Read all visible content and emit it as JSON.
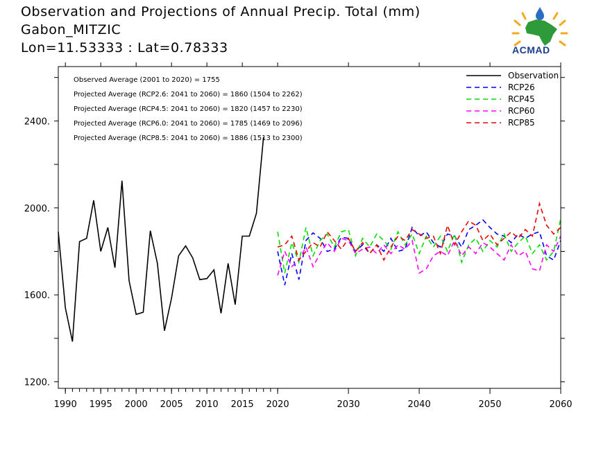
{
  "header": {
    "line1": "Observation and Projections of Annual Precip. Total (mm)",
    "line2": "Gabon_MITZIC",
    "line3": "Lon=11.53333 : Lat=0.78333"
  },
  "logo": {
    "text": "ACMAD",
    "icon": "africa-sun-drop-icon"
  },
  "chart_data": {
    "type": "line",
    "xlim": [
      1989,
      2060
    ],
    "ylim": [
      1170,
      2650
    ],
    "x_ticks": [
      1990,
      1995,
      2000,
      2005,
      2010,
      2015,
      2020,
      2030,
      2040,
      2050,
      2060
    ],
    "y_ticks": [
      1200,
      1600,
      2000,
      2400
    ],
    "y_tick_labels": [
      "1200.",
      "1600.",
      "2000.",
      "2400."
    ],
    "annotations": [
      "Observed Average (2001 to 2020) = 1755",
      "Projected Average (RCP2.6: 2041 to 2060) = 1860 (1504 to 2262)",
      "Projected Average (RCP4.5: 2041 to 2060) = 1820 (1457 to 2230)",
      "Projected Average (RCP6.0: 2041 to 2060) = 1785 (1469 to 2096)",
      "Projected Average (RCP8.5: 2041 to 2060) = 1886 (1513 to 2300)"
    ],
    "legend_position": "top-right",
    "series": [
      {
        "name": "Observation",
        "color": "#000000",
        "dash": false,
        "x": [
          1989,
          1990,
          1991,
          1992,
          1993,
          1994,
          1995,
          1996,
          1997,
          1998,
          1999,
          2000,
          2001,
          2002,
          2003,
          2004,
          2005,
          2006,
          2007,
          2008,
          2009,
          2010,
          2011,
          2012,
          2013,
          2014,
          2015,
          2016,
          2017,
          2018,
          2019,
          2020
        ],
        "y": [
          1890,
          1540,
          1385,
          1845,
          1860,
          2035,
          1800,
          1910,
          1725,
          2125,
          1665,
          1510,
          1520,
          1895,
          1745,
          1435,
          1585,
          1780,
          1825,
          1770,
          1670,
          1675,
          1715,
          1515,
          1745,
          1555,
          1870,
          1870,
          1975,
          2325,
          null,
          null
        ]
      },
      {
        "name": "RCP26",
        "color": "#0000ff",
        "dash": true,
        "x": [
          2020,
          2021,
          2022,
          2023,
          2024,
          2025,
          2026,
          2027,
          2028,
          2029,
          2030,
          2031,
          2032,
          2033,
          2034,
          2035,
          2036,
          2037,
          2038,
          2039,
          2040,
          2041,
          2042,
          2043,
          2044,
          2045,
          2046,
          2047,
          2048,
          2049,
          2050,
          2051,
          2052,
          2053,
          2054,
          2055,
          2056,
          2057,
          2058,
          2059,
          2060
        ],
        "y": [
          1800,
          1645,
          1790,
          1670,
          1850,
          1885,
          1860,
          1800,
          1810,
          1865,
          1860,
          1800,
          1830,
          1790,
          1830,
          1800,
          1860,
          1800,
          1810,
          1910,
          1870,
          1890,
          1840,
          1820,
          1880,
          1870,
          1820,
          1900,
          1920,
          1945,
          1910,
          1880,
          1870,
          1840,
          1880,
          1860,
          1880,
          1890,
          1780,
          1760,
          1850
        ]
      },
      {
        "name": "RCP45",
        "color": "#00dd00",
        "dash": true,
        "x": [
          2020,
          2021,
          2022,
          2023,
          2024,
          2025,
          2026,
          2027,
          2028,
          2029,
          2030,
          2031,
          2032,
          2033,
          2034,
          2035,
          2036,
          2037,
          2038,
          2039,
          2040,
          2041,
          2042,
          2043,
          2044,
          2045,
          2046,
          2047,
          2048,
          2049,
          2050,
          2051,
          2052,
          2053,
          2054,
          2055,
          2056,
          2057,
          2058,
          2059,
          2060
        ],
        "y": [
          1890,
          1700,
          1840,
          1750,
          1910,
          1780,
          1850,
          1880,
          1820,
          1890,
          1900,
          1780,
          1860,
          1820,
          1880,
          1850,
          1810,
          1890,
          1830,
          1880,
          1790,
          1870,
          1820,
          1870,
          1800,
          1880,
          1750,
          1830,
          1860,
          1800,
          1850,
          1820,
          1880,
          1800,
          1840,
          1870,
          1790,
          1830,
          1760,
          1800,
          1950
        ]
      },
      {
        "name": "RCP60",
        "color": "#ff00ff",
        "dash": true,
        "x": [
          2020,
          2021,
          2022,
          2023,
          2024,
          2025,
          2026,
          2027,
          2028,
          2029,
          2030,
          2031,
          2032,
          2033,
          2034,
          2035,
          2036,
          2037,
          2038,
          2039,
          2040,
          2041,
          2042,
          2043,
          2044,
          2045,
          2046,
          2047,
          2048,
          2049,
          2050,
          2051,
          2052,
          2053,
          2054,
          2055,
          2056,
          2057,
          2058,
          2059,
          2060
        ],
        "y": [
          1690,
          1800,
          1730,
          1760,
          1820,
          1730,
          1790,
          1840,
          1800,
          1860,
          1850,
          1790,
          1810,
          1820,
          1790,
          1830,
          1790,
          1830,
          1810,
          1850,
          1700,
          1720,
          1780,
          1800,
          1780,
          1850,
          1780,
          1820,
          1790,
          1840,
          1820,
          1790,
          1760,
          1830,
          1780,
          1800,
          1720,
          1710,
          1830,
          1800,
          1870
        ]
      },
      {
        "name": "RCP85",
        "color": "#ee0000",
        "dash": true,
        "x": [
          2020,
          2021,
          2022,
          2023,
          2024,
          2025,
          2026,
          2027,
          2028,
          2029,
          2030,
          2031,
          2032,
          2033,
          2034,
          2035,
          2036,
          2037,
          2038,
          2039,
          2040,
          2041,
          2042,
          2043,
          2044,
          2045,
          2046,
          2047,
          2048,
          2049,
          2050,
          2051,
          2052,
          2053,
          2054,
          2055,
          2056,
          2057,
          2058,
          2059,
          2060
        ],
        "y": [
          1820,
          1830,
          1870,
          1760,
          1800,
          1840,
          1820,
          1890,
          1850,
          1810,
          1860,
          1800,
          1840,
          1790,
          1830,
          1760,
          1820,
          1870,
          1850,
          1900,
          1880,
          1860,
          1870,
          1790,
          1920,
          1830,
          1890,
          1940,
          1920,
          1850,
          1880,
          1830,
          1860,
          1890,
          1860,
          1900,
          1870,
          2020,
          1920,
          1880,
          1910
        ]
      }
    ]
  }
}
